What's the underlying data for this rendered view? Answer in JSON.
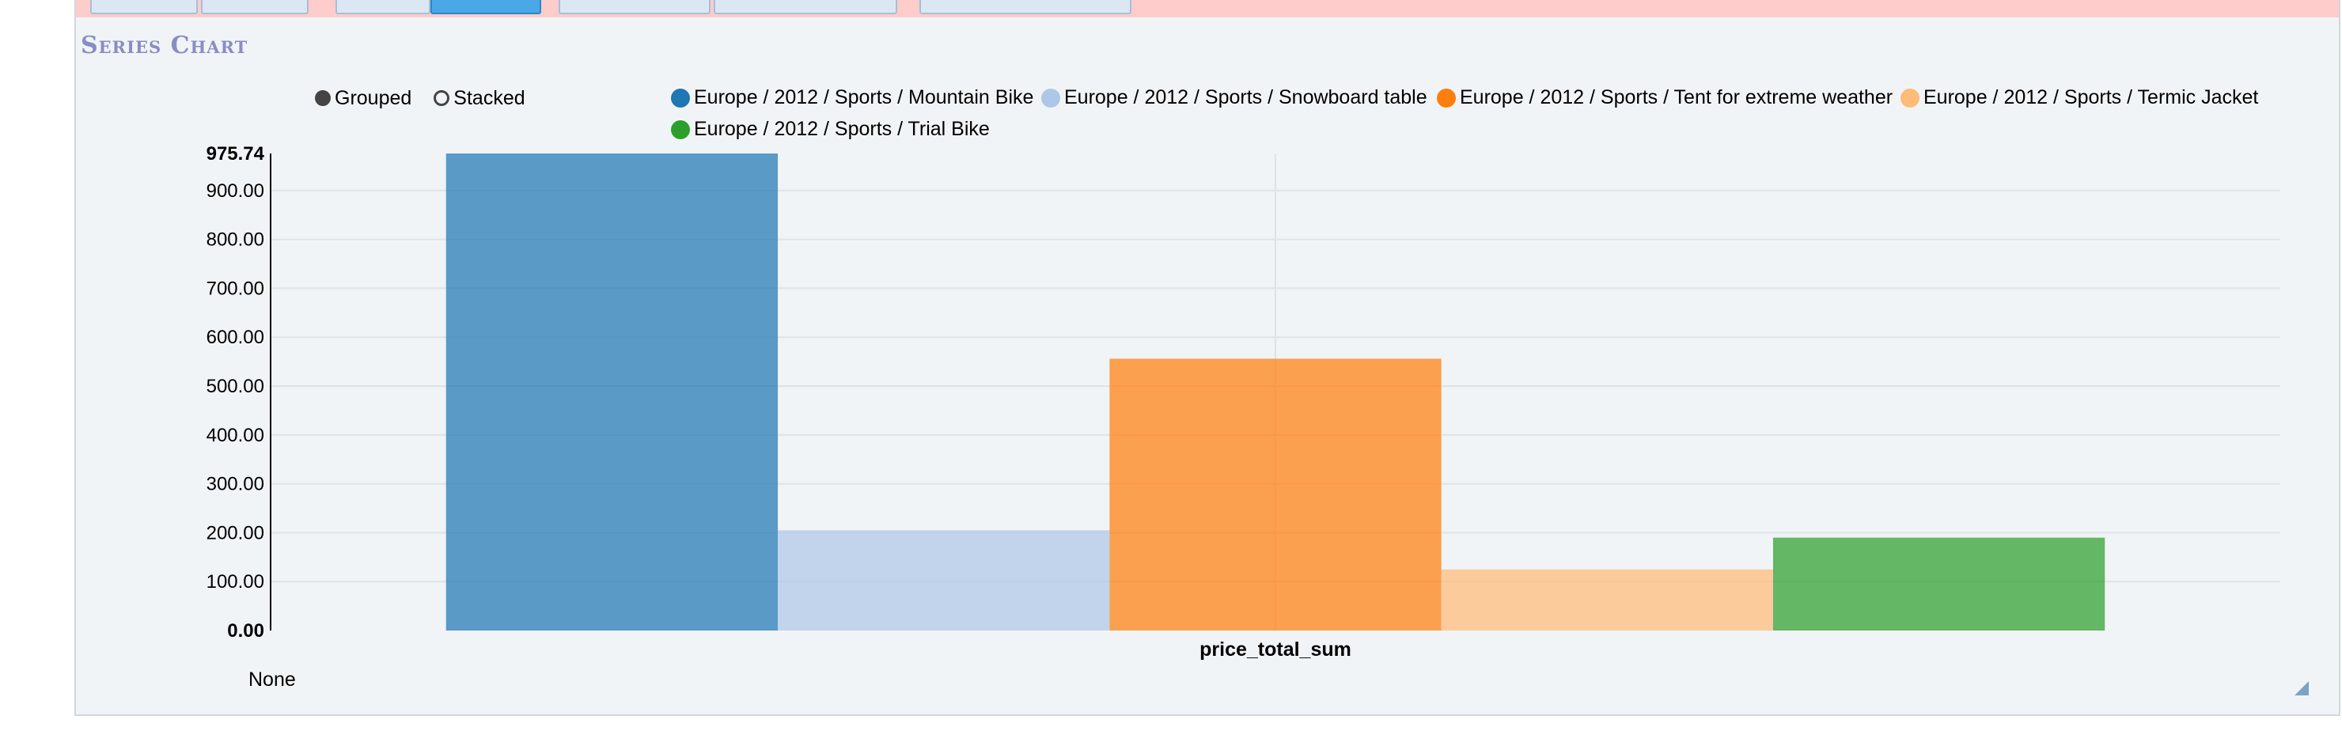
{
  "panel": {
    "title": "Series Chart",
    "footer_note": "None"
  },
  "controls": {
    "grouped_label": "Grouped",
    "stacked_label": "Stacked",
    "selected": "grouped"
  },
  "chart_data": {
    "type": "bar",
    "mode": "grouped",
    "categories": [
      "price_total_sum"
    ],
    "xlabel": "price_total_sum",
    "ylabel": "",
    "ylim": [
      0,
      975.74
    ],
    "yticks": [
      "0.00",
      "100.00",
      "200.00",
      "300.00",
      "400.00",
      "500.00",
      "600.00",
      "700.00",
      "800.00",
      "900.00",
      "975.74"
    ],
    "grid": true,
    "legend_position": "top",
    "series": [
      {
        "name": "Europe / 2012 / Sports / Mountain Bike",
        "color": "#1f77b4",
        "values": [
          975.74
        ]
      },
      {
        "name": "Europe / 2012 / Sports / Snowboard table",
        "color": "#aec7e8",
        "values": [
          205
        ]
      },
      {
        "name": "Europe / 2012 / Sports / Tent for extreme weather",
        "color": "#ff7f0e",
        "values": [
          556
        ]
      },
      {
        "name": "Europe / 2012 / Sports / Termic Jacket",
        "color": "#ffbb78",
        "values": [
          125
        ]
      },
      {
        "name": "Europe / 2012 / Sports / Trial Bike",
        "color": "#2ca02c",
        "values": [
          190
        ]
      }
    ]
  }
}
